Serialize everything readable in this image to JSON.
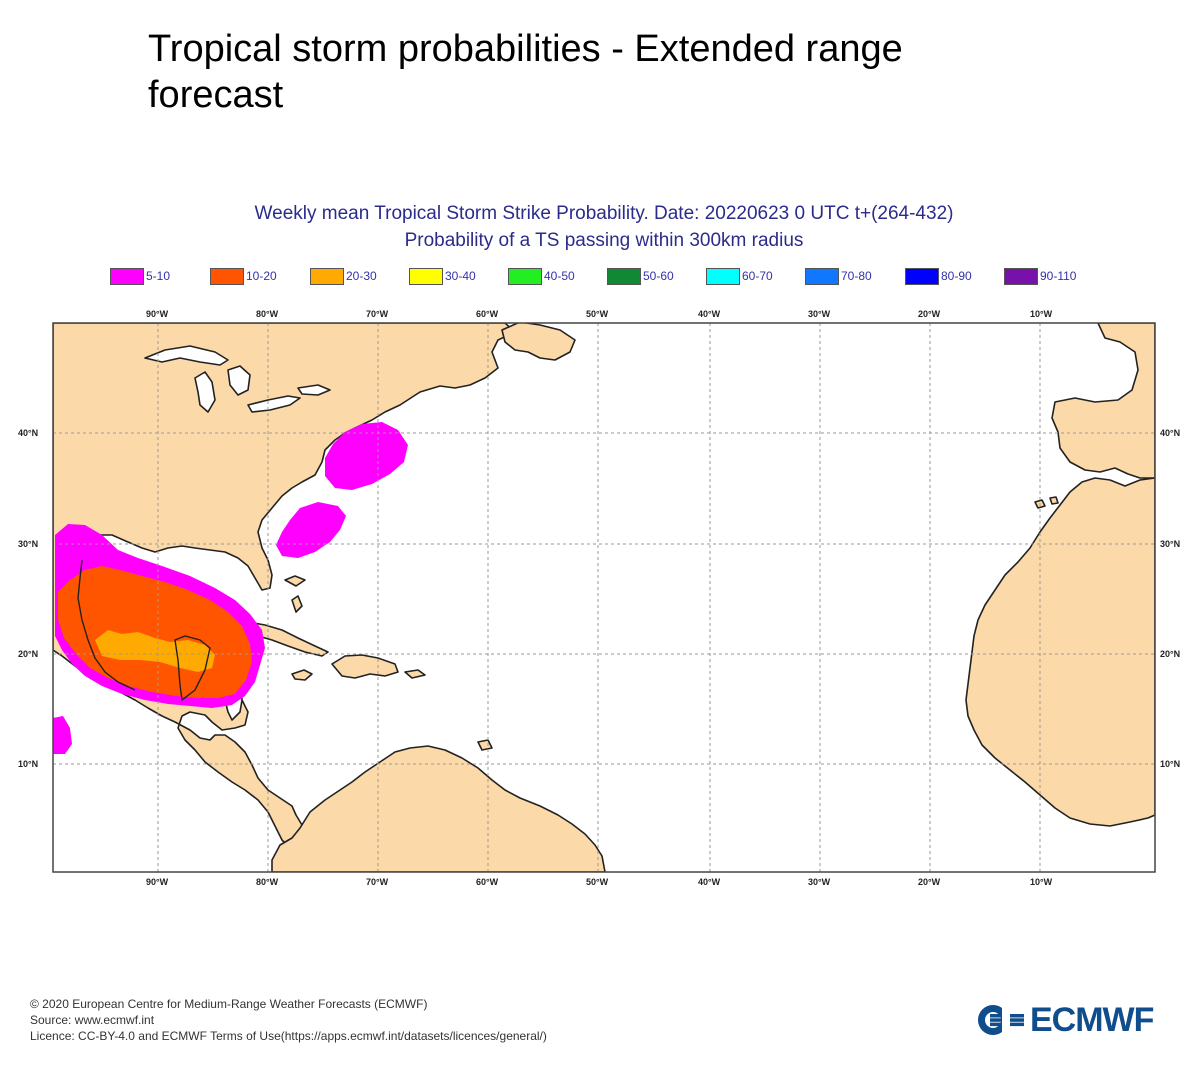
{
  "page": {
    "title": "Tropical storm probabilities - Extended range forecast"
  },
  "map": {
    "title_line1": "Weekly mean Tropical Storm Strike Probability. Date: 20220623  0 UTC    t+(264-432)",
    "title_line2": "Probability of a TS passing within  300km radius",
    "lon_ticks": [
      "90°W",
      "80°W",
      "70°W",
      "60°W",
      "50°W",
      "40°W",
      "30°W",
      "20°W",
      "10°W"
    ],
    "lat_ticks": [
      "40°N",
      "30°N",
      "20°N",
      "10°N"
    ],
    "land_color": "#fcd9a8",
    "ocean_color": "#ffffff"
  },
  "legend": {
    "items": [
      {
        "label": "5-10",
        "color": "#ff00ff"
      },
      {
        "label": "10-20",
        "color": "#ff5500"
      },
      {
        "label": "20-30",
        "color": "#ffaa00"
      },
      {
        "label": "30-40",
        "color": "#ffff00"
      },
      {
        "label": "40-50",
        "color": "#22ee22"
      },
      {
        "label": "50-60",
        "color": "#118833"
      },
      {
        "label": "60-70",
        "color": "#00ffff"
      },
      {
        "label": "70-80",
        "color": "#1177ff"
      },
      {
        "label": "80-90",
        "color": "#0000ff"
      },
      {
        "label": "90-110",
        "color": "#7711aa"
      }
    ]
  },
  "footer": {
    "copyright": "© 2020 European Centre for Medium-Range Weather Forecasts (ECMWF)",
    "source": "Source: www.ecmwf.int",
    "licence": "Licence: CC-BY-4.0 and ECMWF Terms of Use(https://apps.ecmwf.int/datasets/licences/general/)"
  },
  "logo": {
    "text": "ECMWF",
    "color": "#0f4d8c"
  }
}
